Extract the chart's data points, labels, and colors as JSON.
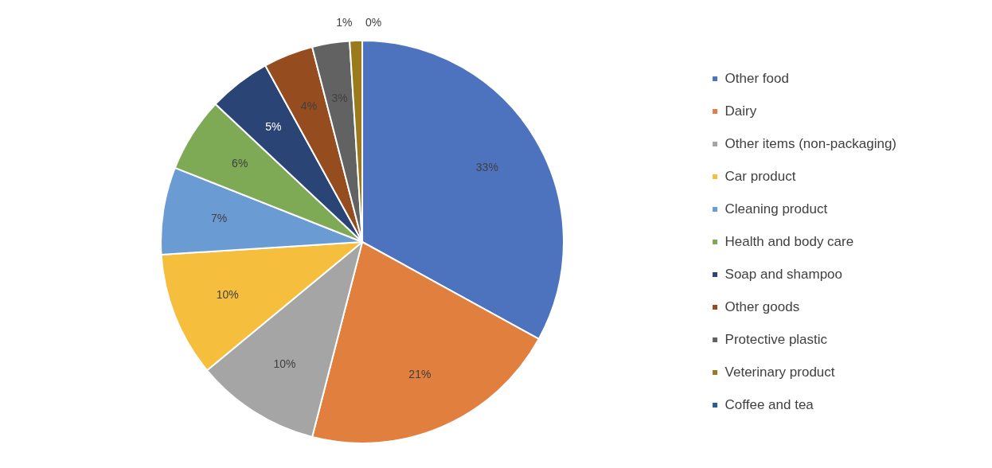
{
  "chart_data": {
    "type": "pie",
    "categories": [
      "Other food",
      "Dairy",
      "Other items (non-packaging)",
      "Car product",
      "Cleaning product",
      "Health and body care",
      "Soap and shampoo",
      "Other goods",
      "Protective plastic",
      "Veterinary product",
      "Coffee and tea"
    ],
    "values": [
      33,
      21,
      10,
      10,
      7,
      6,
      5,
      4,
      3,
      1,
      0
    ],
    "colors": [
      "#4e73be",
      "#e07f3e",
      "#a5a5a5",
      "#f5be3c",
      "#6a9bd2",
      "#7ea955",
      "#2b4476",
      "#954c1f",
      "#626262",
      "#9a7a1c",
      "#2a5d96"
    ],
    "value_labels": [
      "33%",
      "21%",
      "10%",
      "10%",
      "7%",
      "6%",
      "5%",
      "4%",
      "3%",
      "1%",
      "0%"
    ],
    "legend": "right"
  }
}
